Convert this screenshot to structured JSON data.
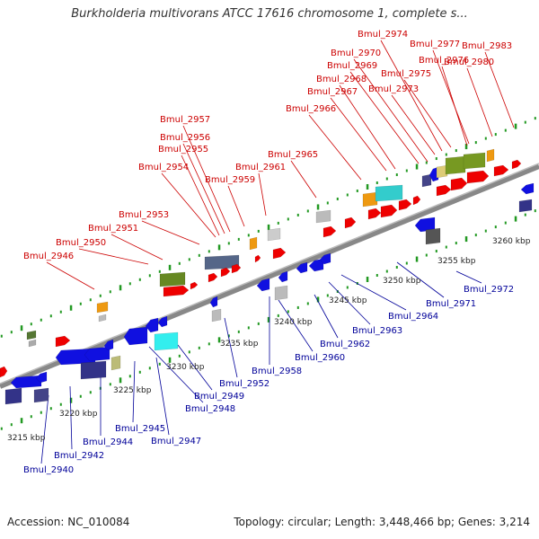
{
  "title": "Burkholderia multivorans ATCC 17616 chromosome 1, complete s...",
  "footer": {
    "accession": "Accession: NC_010084",
    "topology": "Topology: circular; Length: 3,448,466 bp; Genes: 3,214"
  },
  "colors": {
    "top_labels": "#cc0000",
    "bottom_labels": "#000099",
    "backbone": "#888888",
    "tick_dots": "#229922",
    "forward_gene": "#ee0000",
    "reverse_gene": "#1010e0"
  },
  "scale_labels": [
    "3215 kbp",
    "3220 kbp",
    "3225 kbp",
    "3230 kbp",
    "3235 kbp",
    "3240 kbp",
    "3245 kbp",
    "3250 kbp",
    "3255 kbp",
    "3260 kbp"
  ],
  "top_genes": [
    "Bmul_2946",
    "Bmul_2950",
    "Bmul_2951",
    "Bmul_2953",
    "Bmul_2954",
    "Bmul_2955",
    "Bmul_2956",
    "Bmul_2957",
    "Bmul_2959",
    "Bmul_2961",
    "Bmul_2965",
    "Bmul_2966",
    "Bmul_2967",
    "Bmul_2968",
    "Bmul_2969",
    "Bmul_2970",
    "Bmul_2973",
    "Bmul_2974",
    "Bmul_2975",
    "Bmul_2976",
    "Bmul_2977",
    "Bmul_2980",
    "Bmul_2983"
  ],
  "bottom_genes": [
    "Bmul_2940",
    "Bmul_2942",
    "Bmul_2944",
    "Bmul_2945",
    "Bmul_2947",
    "Bmul_2948",
    "Bmul_2949",
    "Bmul_2952",
    "Bmul_2958",
    "Bmul_2960",
    "Bmul_2962",
    "Bmul_2963",
    "Bmul_2964",
    "Bmul_2971",
    "Bmul_2972"
  ]
}
